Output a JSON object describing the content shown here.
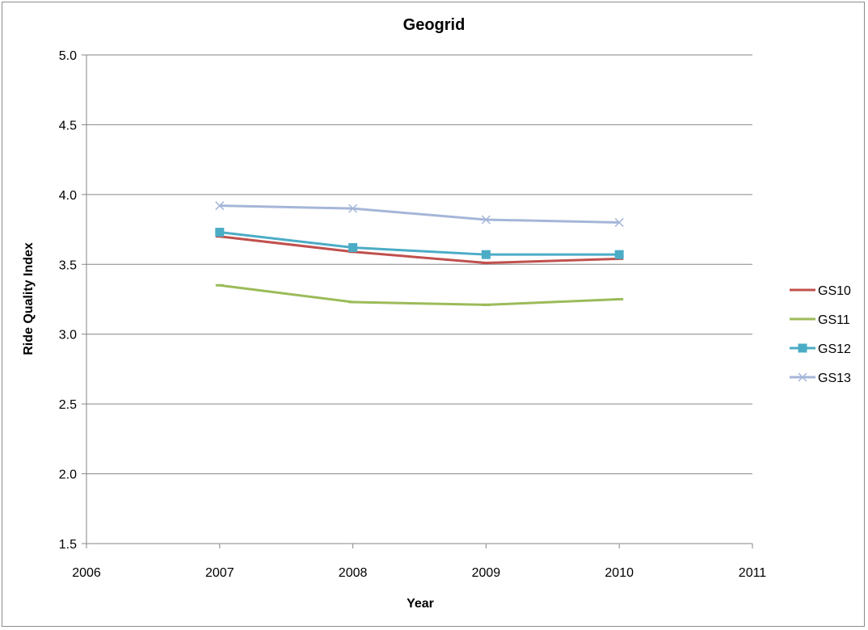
{
  "chart_data": {
    "type": "line",
    "title": "Geogrid",
    "xlabel": "Year",
    "ylabel": "Ride Quality Index",
    "xlim": [
      2006,
      2011
    ],
    "ylim": [
      1.5,
      5.0
    ],
    "x_ticks": [
      "2006",
      "2007",
      "2008",
      "2009",
      "2010",
      "2011"
    ],
    "y_ticks": [
      "1.5",
      "2.0",
      "2.5",
      "3.0",
      "3.5",
      "4.0",
      "4.5",
      "5.0"
    ],
    "grid": "horizontal",
    "legend_position": "right",
    "x": [
      2007,
      2008,
      2009,
      2010
    ],
    "series": [
      {
        "name": "GS10",
        "values": [
          3.7,
          3.59,
          3.51,
          3.54
        ],
        "color": "#c0504d",
        "marker": "dash"
      },
      {
        "name": "GS11",
        "values": [
          3.35,
          3.23,
          3.21,
          3.25
        ],
        "color": "#9bbb59",
        "marker": "dash"
      },
      {
        "name": "GS12",
        "values": [
          3.73,
          3.62,
          3.57,
          3.57
        ],
        "color": "#4bacc6",
        "marker": "square"
      },
      {
        "name": "GS13",
        "values": [
          3.92,
          3.9,
          3.82,
          3.8
        ],
        "color": "#a5b6d8",
        "marker": "x"
      }
    ]
  }
}
